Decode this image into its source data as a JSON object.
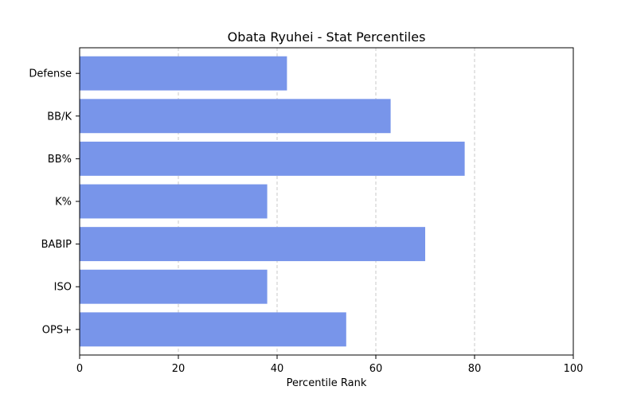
{
  "chart_data": {
    "type": "bar",
    "orientation": "horizontal",
    "title": "Obata Ryuhei - Stat Percentiles",
    "xlabel": "Percentile Rank",
    "ylabel": "",
    "categories": [
      "OPS+",
      "ISO",
      "BABIP",
      "K%",
      "BB%",
      "BB/K",
      "Defense"
    ],
    "values": [
      54,
      38,
      70,
      38,
      78,
      63,
      42
    ],
    "xlim": [
      0,
      100
    ],
    "xticks": [
      0,
      20,
      40,
      60,
      80,
      100
    ],
    "grid": "vertical dashed",
    "legend": "none",
    "bar_color": "#7895ea",
    "grid_color": "#c8c8c8"
  }
}
